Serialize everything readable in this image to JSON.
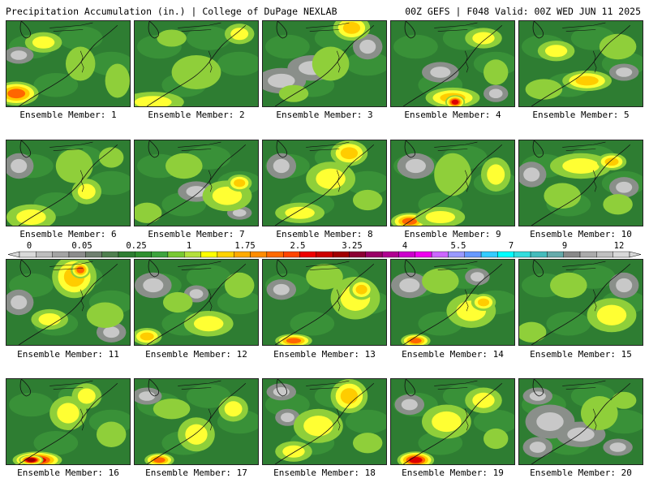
{
  "header": {
    "left": "Precipitation Accumulation (in.) | College of DuPage NEXLAB",
    "right": "00Z GEFS | F048 Valid: 00Z WED JUN 11 2025"
  },
  "panel_label_prefix": "Ensemble Member: ",
  "members": [
    {
      "n": 1,
      "blobs": [
        [
          0.08,
          0.85,
          0.18,
          0.14,
          4
        ],
        [
          0.3,
          0.25,
          0.15,
          0.12,
          2
        ],
        [
          0.6,
          0.5,
          0.12,
          0.2,
          1
        ],
        [
          0.9,
          0.7,
          0.1,
          0.2,
          1
        ]
      ],
      "grays": [
        [
          0.1,
          0.4,
          0.12,
          0.1
        ]
      ]
    },
    {
      "n": 2,
      "blobs": [
        [
          0.15,
          0.95,
          0.25,
          0.12,
          2
        ],
        [
          0.5,
          0.6,
          0.2,
          0.2,
          1
        ],
        [
          0.85,
          0.15,
          0.12,
          0.12,
          2
        ],
        [
          0.3,
          0.2,
          0.12,
          0.1,
          1
        ]
      ],
      "grays": []
    },
    {
      "n": 3,
      "blobs": [
        [
          0.72,
          0.08,
          0.15,
          0.15,
          3
        ],
        [
          0.55,
          0.5,
          0.15,
          0.2,
          1
        ],
        [
          0.25,
          0.85,
          0.12,
          0.1,
          1
        ]
      ],
      "grays": [
        [
          0.15,
          0.7,
          0.2,
          0.15
        ],
        [
          0.4,
          0.55,
          0.2,
          0.15
        ],
        [
          0.85,
          0.3,
          0.12,
          0.15
        ]
      ]
    },
    {
      "n": 4,
      "blobs": [
        [
          0.5,
          0.9,
          0.22,
          0.12,
          3
        ],
        [
          0.52,
          0.95,
          0.08,
          0.08,
          5
        ],
        [
          0.75,
          0.2,
          0.15,
          0.12,
          2
        ],
        [
          0.85,
          0.6,
          0.1,
          0.15,
          1
        ]
      ],
      "grays": [
        [
          0.4,
          0.6,
          0.15,
          0.12
        ],
        [
          0.85,
          0.85,
          0.1,
          0.1
        ]
      ]
    },
    {
      "n": 5,
      "blobs": [
        [
          0.55,
          0.7,
          0.2,
          0.12,
          3
        ],
        [
          0.3,
          0.35,
          0.15,
          0.12,
          2
        ],
        [
          0.8,
          0.3,
          0.15,
          0.15,
          1
        ],
        [
          0.2,
          0.8,
          0.15,
          0.12,
          1
        ]
      ],
      "grays": [
        [
          0.85,
          0.6,
          0.12,
          0.1
        ]
      ]
    },
    {
      "n": 6,
      "blobs": [
        [
          0.2,
          0.9,
          0.2,
          0.15,
          2
        ],
        [
          0.55,
          0.3,
          0.15,
          0.2,
          1
        ],
        [
          0.65,
          0.6,
          0.12,
          0.15,
          2
        ],
        [
          0.85,
          0.2,
          0.1,
          0.12,
          1
        ]
      ],
      "grays": [
        [
          0.1,
          0.3,
          0.12,
          0.15
        ]
      ]
    },
    {
      "n": 7,
      "blobs": [
        [
          0.75,
          0.65,
          0.2,
          0.18,
          2
        ],
        [
          0.85,
          0.5,
          0.1,
          0.1,
          3
        ],
        [
          0.4,
          0.3,
          0.15,
          0.15,
          1
        ],
        [
          0.1,
          0.85,
          0.12,
          0.12,
          1
        ]
      ],
      "grays": [
        [
          0.5,
          0.6,
          0.15,
          0.12
        ],
        [
          0.85,
          0.85,
          0.1,
          0.08
        ]
      ]
    },
    {
      "n": 8,
      "blobs": [
        [
          0.7,
          0.15,
          0.15,
          0.15,
          3
        ],
        [
          0.55,
          0.45,
          0.2,
          0.2,
          2
        ],
        [
          0.3,
          0.85,
          0.2,
          0.12,
          2
        ],
        [
          0.85,
          0.7,
          0.12,
          0.12,
          1
        ]
      ],
      "grays": [
        [
          0.15,
          0.3,
          0.12,
          0.15
        ]
      ]
    },
    {
      "n": 9,
      "blobs": [
        [
          0.15,
          0.95,
          0.15,
          0.1,
          4
        ],
        [
          0.4,
          0.9,
          0.2,
          0.12,
          2
        ],
        [
          0.5,
          0.4,
          0.15,
          0.25,
          1
        ],
        [
          0.85,
          0.4,
          0.12,
          0.2,
          2
        ]
      ],
      "grays": [
        [
          0.2,
          0.3,
          0.15,
          0.15
        ]
      ]
    },
    {
      "n": 10,
      "blobs": [
        [
          0.5,
          0.3,
          0.25,
          0.15,
          2
        ],
        [
          0.75,
          0.25,
          0.12,
          0.1,
          3
        ],
        [
          0.35,
          0.65,
          0.15,
          0.15,
          1
        ],
        [
          0.8,
          0.75,
          0.12,
          0.12,
          1
        ]
      ],
      "grays": [
        [
          0.1,
          0.4,
          0.12,
          0.15
        ],
        [
          0.85,
          0.55,
          0.12,
          0.12
        ]
      ]
    },
    {
      "n": 11,
      "blobs": [
        [
          0.55,
          0.2,
          0.18,
          0.25,
          3
        ],
        [
          0.6,
          0.12,
          0.08,
          0.1,
          4
        ],
        [
          0.35,
          0.7,
          0.15,
          0.12,
          2
        ],
        [
          0.8,
          0.65,
          0.15,
          0.15,
          1
        ]
      ],
      "grays": [
        [
          0.1,
          0.5,
          0.12,
          0.15
        ],
        [
          0.85,
          0.85,
          0.12,
          0.12
        ]
      ]
    },
    {
      "n": 12,
      "blobs": [
        [
          0.1,
          0.9,
          0.12,
          0.1,
          3
        ],
        [
          0.6,
          0.75,
          0.2,
          0.15,
          2
        ],
        [
          0.35,
          0.5,
          0.12,
          0.12,
          1
        ],
        [
          0.85,
          0.3,
          0.12,
          0.15,
          1
        ]
      ],
      "grays": [
        [
          0.15,
          0.3,
          0.15,
          0.15
        ],
        [
          0.5,
          0.4,
          0.1,
          0.1
        ]
      ]
    },
    {
      "n": 13,
      "blobs": [
        [
          0.25,
          0.95,
          0.15,
          0.08,
          4
        ],
        [
          0.75,
          0.45,
          0.2,
          0.25,
          2
        ],
        [
          0.8,
          0.35,
          0.1,
          0.12,
          3
        ],
        [
          0.5,
          0.2,
          0.15,
          0.15,
          1
        ]
      ],
      "grays": [
        [
          0.15,
          0.35,
          0.12,
          0.12
        ]
      ]
    },
    {
      "n": 14,
      "blobs": [
        [
          0.2,
          0.95,
          0.12,
          0.08,
          4
        ],
        [
          0.65,
          0.6,
          0.2,
          0.2,
          2
        ],
        [
          0.75,
          0.5,
          0.1,
          0.1,
          3
        ],
        [
          0.4,
          0.25,
          0.15,
          0.15,
          1
        ]
      ],
      "grays": [
        [
          0.15,
          0.3,
          0.15,
          0.15
        ],
        [
          0.7,
          0.2,
          0.1,
          0.1
        ]
      ]
    },
    {
      "n": 15,
      "blobs": [
        [
          0.75,
          0.65,
          0.2,
          0.2,
          2
        ],
        [
          0.4,
          0.3,
          0.15,
          0.15,
          1
        ],
        [
          0.1,
          0.85,
          0.12,
          0.12,
          1
        ]
      ],
      "grays": [
        [
          0.85,
          0.3,
          0.12,
          0.15
        ]
      ]
    },
    {
      "n": 16,
      "blobs": [
        [
          0.25,
          0.95,
          0.2,
          0.1,
          5
        ],
        [
          0.2,
          0.95,
          0.1,
          0.06,
          6
        ],
        [
          0.5,
          0.4,
          0.15,
          0.2,
          2
        ],
        [
          0.65,
          0.2,
          0.12,
          0.15,
          2
        ],
        [
          0.85,
          0.65,
          0.12,
          0.15,
          1
        ]
      ],
      "grays": []
    },
    {
      "n": 17,
      "blobs": [
        [
          0.2,
          0.95,
          0.12,
          0.08,
          4
        ],
        [
          0.5,
          0.65,
          0.15,
          0.2,
          2
        ],
        [
          0.8,
          0.35,
          0.12,
          0.15,
          2
        ],
        [
          0.3,
          0.35,
          0.15,
          0.12,
          1
        ]
      ],
      "grays": [
        [
          0.1,
          0.2,
          0.12,
          0.1
        ]
      ]
    },
    {
      "n": 18,
      "blobs": [
        [
          0.7,
          0.2,
          0.15,
          0.2,
          3
        ],
        [
          0.45,
          0.55,
          0.2,
          0.2,
          2
        ],
        [
          0.25,
          0.85,
          0.15,
          0.12,
          2
        ],
        [
          0.85,
          0.75,
          0.12,
          0.12,
          1
        ]
      ],
      "grays": [
        [
          0.15,
          0.15,
          0.12,
          0.1
        ],
        [
          0.2,
          0.45,
          0.1,
          0.1
        ]
      ]
    },
    {
      "n": 19,
      "blobs": [
        [
          0.2,
          0.95,
          0.15,
          0.1,
          5
        ],
        [
          0.45,
          0.5,
          0.2,
          0.2,
          2
        ],
        [
          0.75,
          0.25,
          0.15,
          0.15,
          2
        ],
        [
          0.85,
          0.7,
          0.1,
          0.12,
          1
        ]
      ],
      "grays": [
        [
          0.15,
          0.3,
          0.12,
          0.12
        ]
      ]
    },
    {
      "n": 20,
      "blobs": [
        [
          0.65,
          0.4,
          0.15,
          0.2,
          1
        ],
        [
          0.85,
          0.25,
          0.1,
          0.1,
          1
        ]
      ],
      "grays": [
        [
          0.25,
          0.5,
          0.2,
          0.2
        ],
        [
          0.5,
          0.65,
          0.2,
          0.15
        ],
        [
          0.15,
          0.8,
          0.12,
          0.12
        ],
        [
          0.8,
          0.8,
          0.12,
          0.1
        ],
        [
          0.15,
          0.2,
          0.12,
          0.1
        ]
      ]
    }
  ],
  "colorbar": {
    "tick_labels": [
      "0",
      "0.05",
      "0.25",
      "1",
      "1.75",
      "2.5",
      "3.25",
      "4",
      "5.5",
      "7",
      "9",
      "12"
    ],
    "colors": [
      "#d9d9d9",
      "#bdbdbd",
      "#a3a3a3",
      "#8c8c8c",
      "#6f7f6f",
      "#4f7f4f",
      "#2e7d32",
      "#2f8f2f",
      "#3da33d",
      "#78c832",
      "#b4e03c",
      "#ffff00",
      "#ffd200",
      "#ffaa00",
      "#ff8c00",
      "#ff6a00",
      "#ff4500",
      "#ee0000",
      "#cc0000",
      "#a00000",
      "#8b0033",
      "#990066",
      "#b00090",
      "#cc00cc",
      "#ee00ee",
      "#cc66ff",
      "#9999ff",
      "#6699ff",
      "#33ccff",
      "#00ffff",
      "#33dddd",
      "#44bbbb",
      "#66aaaa",
      "#888888",
      "#aaaaaa",
      "#c0c0c0",
      "#d8d8d8"
    ]
  }
}
